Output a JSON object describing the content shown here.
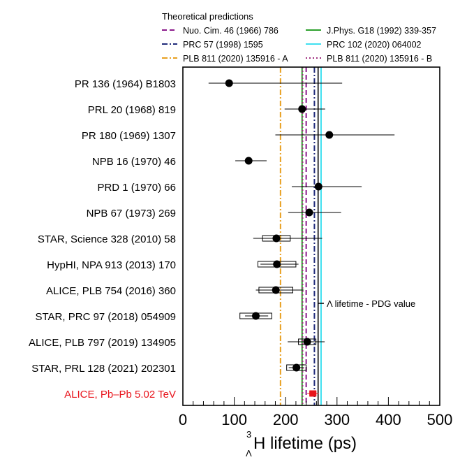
{
  "chart_data": {
    "type": "scatter",
    "orientation": "horizontal",
    "title": "",
    "xlabel": "H lifetime (ps)",
    "xlabel_superscript": "3",
    "xlabel_subscript": "Λ",
    "ylabel": "",
    "xlim": [
      0,
      500
    ],
    "x_ticks": [
      "0",
      "100",
      "200",
      "300",
      "400",
      "500"
    ],
    "grid": false,
    "legend_title": "Theoretical predictions",
    "legend_position": "top",
    "theory_lines": [
      {
        "name": "Nuo. Cim. 46 (1966) 786",
        "x": 240,
        "color": "#8b1a8b",
        "dash": "dashed"
      },
      {
        "name": "J.Phys. G18 (1992) 339-357",
        "x": 232,
        "color": "#2ca02c",
        "dash": "solid"
      },
      {
        "name": "PRC 57 (1998) 1595",
        "x": 256,
        "color": "#1f2a7a",
        "dash": "dashdot"
      },
      {
        "name": "PRC 102 (2020) 064002",
        "x": 269,
        "color": "#40e0f0",
        "dash": "solid"
      },
      {
        "name": "PLB 811 (2020) 135916 - A",
        "x": 190,
        "color": "#e8a020",
        "dash": "dashdot"
      },
      {
        "name": "PLB 811 (2020) 135916 - B",
        "x": 233,
        "color": "#a03080",
        "dash": "dotted"
      }
    ],
    "pdg_value": {
      "label": "Λ lifetime - PDG value",
      "x": 263.2,
      "color": "#000000"
    },
    "measurements": [
      {
        "label": "PR 136 (1964) B1803",
        "value": 90,
        "stat_lo": 40,
        "stat_hi": 220,
        "syst_lo": null,
        "syst_hi": null,
        "color": "#000000"
      },
      {
        "label": "PRL 20 (1968) 819",
        "value": 232,
        "stat_lo": 34,
        "stat_hi": 45,
        "syst_lo": null,
        "syst_hi": null,
        "color": "#000000"
      },
      {
        "label": "PR 180 (1969) 1307",
        "value": 285,
        "stat_lo": 105,
        "stat_hi": 127,
        "syst_lo": null,
        "syst_hi": null,
        "color": "#000000"
      },
      {
        "label": "NPB 16 (1970) 46",
        "value": 128,
        "stat_lo": 26,
        "stat_hi": 35,
        "syst_lo": null,
        "syst_hi": null,
        "color": "#000000"
      },
      {
        "label": "PRD 1 (1970) 66",
        "value": 264,
        "stat_lo": 52,
        "stat_hi": 84,
        "syst_lo": null,
        "syst_hi": null,
        "color": "#000000"
      },
      {
        "label": "NPB 67 (1973) 269",
        "value": 246,
        "stat_lo": 41,
        "stat_hi": 62,
        "syst_lo": null,
        "syst_hi": null,
        "color": "#000000"
      },
      {
        "label": "STAR, Science 328 (2010) 58",
        "value": 182,
        "stat_lo": 45,
        "stat_hi": 89,
        "syst_lo": 27,
        "syst_hi": 27,
        "color": "#000000"
      },
      {
        "label": "HypHI, NPA 913 (2013) 170",
        "value": 183,
        "stat_lo": 32,
        "stat_hi": 42,
        "syst_lo": 37,
        "syst_hi": 37,
        "color": "#000000"
      },
      {
        "label": "ALICE, PLB 754 (2016) 360",
        "value": 181,
        "stat_lo": 39,
        "stat_hi": 54,
        "syst_lo": 33,
        "syst_hi": 33,
        "color": "#000000"
      },
      {
        "label": "STAR, PRC 97 (2018) 054909",
        "value": 142,
        "stat_lo": 21,
        "stat_hi": 24,
        "syst_lo": 31,
        "syst_hi": 31,
        "color": "#000000"
      },
      {
        "label": "ALICE, PLB 797 (2019) 134905",
        "value": 242,
        "stat_lo": 38,
        "stat_hi": 34,
        "syst_lo": 17,
        "syst_hi": 17,
        "color": "#000000"
      },
      {
        "label": "STAR, PRL 128 (2021) 202301",
        "value": 221,
        "stat_lo": 15,
        "stat_hi": 15,
        "syst_lo": 19,
        "syst_hi": 19,
        "color": "#000000"
      },
      {
        "label": "ALICE, Pb–Pb 5.02 TeV",
        "value": 253,
        "stat_lo": 11,
        "stat_hi": 11,
        "syst_lo": 6,
        "syst_hi": 6,
        "color": "#e8141c"
      }
    ]
  }
}
